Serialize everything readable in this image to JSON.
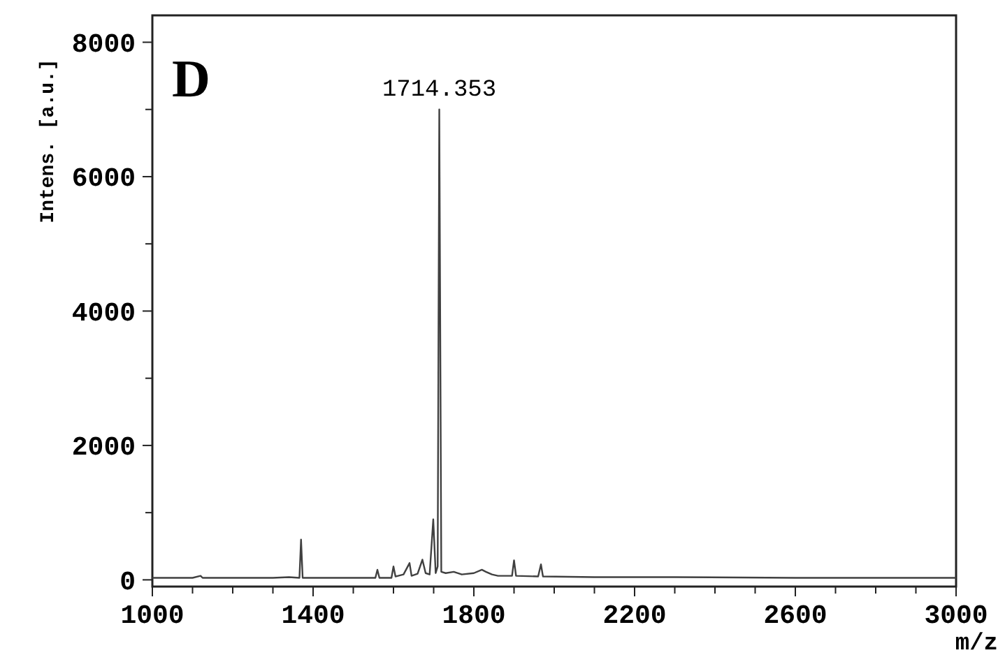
{
  "chart_data": {
    "type": "line",
    "xlabel": "m/z",
    "ylabel": "Intens. [a.u.]",
    "annotations": [
      "D",
      {
        "text": "1714.353",
        "x": 1714,
        "y": 7000
      }
    ],
    "xlim": [
      1000,
      3000
    ],
    "ylim": [
      -100,
      8400
    ],
    "xticks": [
      1000,
      {
        "value": 1100,
        "label": null
      },
      {
        "value": 1200,
        "label": null
      },
      {
        "value": 1300,
        "label": null
      },
      1400,
      {
        "value": 1500,
        "label": null
      },
      {
        "value": 1600,
        "label": null
      },
      {
        "value": 1700,
        "label": null
      },
      1800,
      {
        "value": 1900,
        "label": null
      },
      {
        "value": 2000,
        "label": null
      },
      {
        "value": 2100,
        "label": null
      },
      2200,
      {
        "value": 2300,
        "label": null
      },
      {
        "value": 2400,
        "label": null
      },
      {
        "value": 2500,
        "label": null
      },
      2600,
      {
        "value": 2700,
        "label": null
      },
      {
        "value": 2800,
        "label": null
      },
      {
        "value": 2900,
        "label": null
      },
      3000
    ],
    "yticks": [
      0,
      {
        "value": 1000,
        "label": null
      },
      2000,
      {
        "value": 3000,
        "label": null
      },
      4000,
      {
        "value": 5000,
        "label": null
      },
      6000,
      {
        "value": 7000,
        "label": null
      },
      8000
    ],
    "grid": false,
    "series": [
      {
        "color": "#404040",
        "x": [
          1000,
          1100,
          1120,
          1125,
          1300,
          1340,
          1366,
          1370,
          1374,
          1500,
          1555,
          1560,
          1565,
          1595,
          1600,
          1605,
          1625,
          1640,
          1645,
          1660,
          1672,
          1680,
          1690,
          1699,
          1705,
          1710,
          1714,
          1719,
          1730,
          1750,
          1770,
          1800,
          1820,
          1830,
          1845,
          1860,
          1895,
          1900,
          1905,
          1960,
          1967,
          1972,
          2100,
          2300,
          2600,
          3000
        ],
        "values": [
          30,
          30,
          60,
          30,
          30,
          40,
          30,
          600,
          30,
          30,
          30,
          150,
          30,
          30,
          200,
          50,
          80,
          250,
          60,
          90,
          300,
          100,
          80,
          900,
          100,
          200,
          7000,
          120,
          100,
          120,
          80,
          100,
          150,
          120,
          80,
          60,
          60,
          290,
          60,
          50,
          230,
          50,
          40,
          40,
          30,
          30
        ]
      }
    ]
  }
}
